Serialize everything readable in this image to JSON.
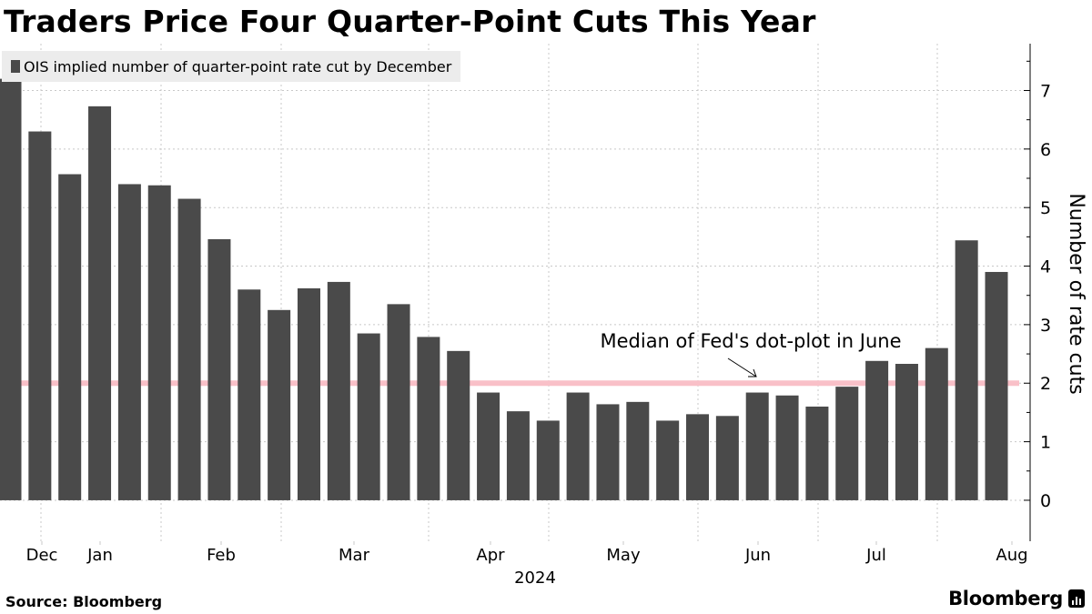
{
  "title": "Traders Price Four Quarter-Point Cuts This Year",
  "legend": {
    "label": "OIS implied number of quarter-point rate cut by December",
    "color": "#4a4a4a"
  },
  "source": "Source: Bloomberg",
  "brand": "Bloomberg",
  "colors": {
    "bar": "#4a4a4a",
    "reference_line": "#f9c0c8",
    "grid": "#c8c8c8",
    "axis": "#000000"
  },
  "chart_data": {
    "type": "bar",
    "series": [
      {
        "name": "OIS implied number of quarter-point rate cut by December",
        "values": [
          7.2,
          6.3,
          5.57,
          6.73,
          5.4,
          5.38,
          5.15,
          4.46,
          3.6,
          3.25,
          3.62,
          3.73,
          2.85,
          3.35,
          2.79,
          2.55,
          1.84,
          1.52,
          1.36,
          1.84,
          1.64,
          1.68,
          1.36,
          1.47,
          1.44,
          1.84,
          1.79,
          1.6,
          1.94,
          2.38,
          2.33,
          2.6,
          4.44,
          3.9
        ]
      }
    ],
    "x_labels": [
      "Dec",
      "Jan",
      "Feb",
      "Mar",
      "Apr",
      "May",
      "Jun",
      "Jul",
      "Aug"
    ],
    "x_sublabel": "2024",
    "ylabel": "Number of rate cuts",
    "yticks": [
      0,
      1,
      2,
      3,
      4,
      5,
      6,
      7
    ],
    "ylim": [
      -0.7,
      7.8
    ],
    "reference_line": {
      "value": 2,
      "label": "Median of Fed's dot-plot in June"
    },
    "grid": true,
    "legend_position": "top-left"
  }
}
